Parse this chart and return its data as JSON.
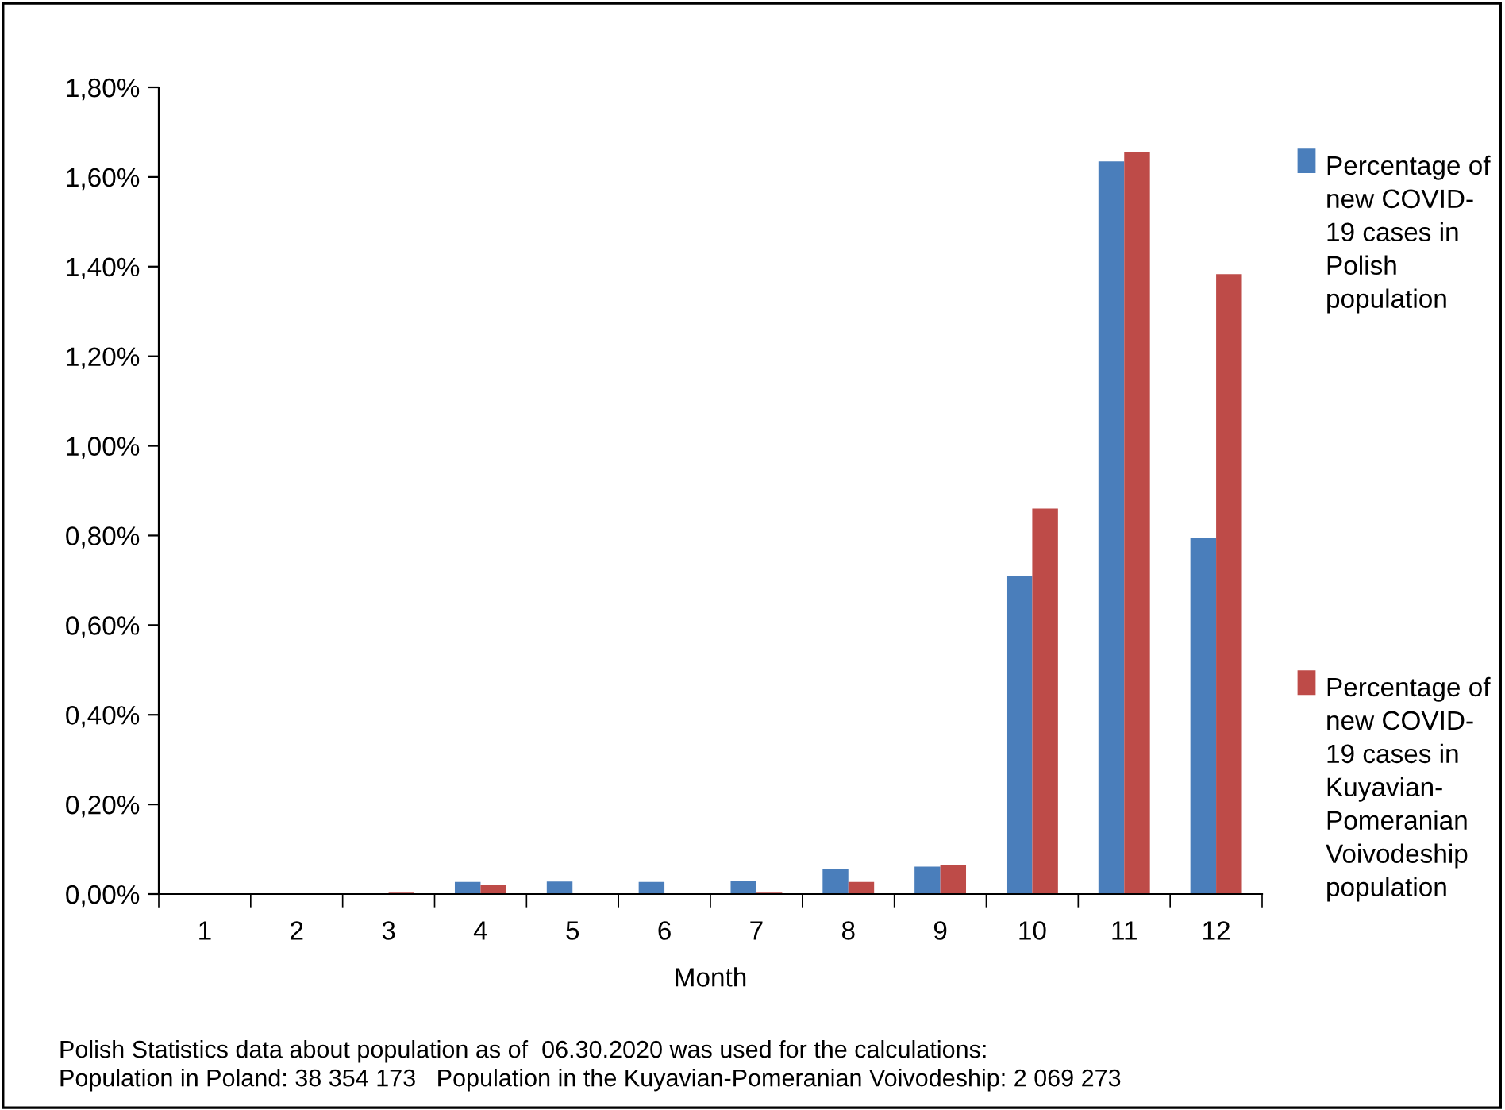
{
  "chart_data": {
    "type": "bar",
    "xlabel": "Month",
    "categories": [
      "1",
      "2",
      "3",
      "4",
      "5",
      "6",
      "7",
      "8",
      "9",
      "10",
      "11",
      "12"
    ],
    "series": [
      {
        "name": "Percentage of new COVID-19 cases in Polish population",
        "color": "#4a7ebb",
        "values": [
          0,
          0,
          null,
          0.027,
          0.028,
          0.027,
          0.029,
          0.056,
          0.061,
          0.71,
          1.635,
          0.794
        ]
      },
      {
        "name": "Percentage of new COVID-19 cases in Kuyavian-Pomeranian Voivodeship population",
        "color": "#be4b48",
        "values": [
          0,
          0,
          0.003,
          0.021,
          null,
          null,
          0.003,
          0.027,
          0.065,
          0.86,
          1.656,
          1.383
        ]
      }
    ],
    "ylim": [
      0,
      1.8
    ],
    "yticks": [
      {
        "value": 0,
        "label": "0,00%"
      },
      {
        "value": 0.2,
        "label": "0,20%"
      },
      {
        "value": 0.4,
        "label": "0,40%"
      },
      {
        "value": 0.6,
        "label": "0,60%"
      },
      {
        "value": 0.8,
        "label": "0,80%"
      },
      {
        "value": 1.0,
        "label": "1,00%"
      },
      {
        "value": 1.2,
        "label": "1,20%"
      },
      {
        "value": 1.4,
        "label": "1,40%"
      },
      {
        "value": 1.6,
        "label": "1,60%"
      },
      {
        "value": 1.8,
        "label": "1,80%"
      }
    ],
    "grid": false,
    "legend": "right",
    "annotations": [
      "Polish Statistics data about population as of  06.30.2020 was used for the calculations:",
      "Population in Poland: 38 354 173   Population in the Kuyavian-Pomeranian Voivodeship: 2 069 273"
    ]
  }
}
